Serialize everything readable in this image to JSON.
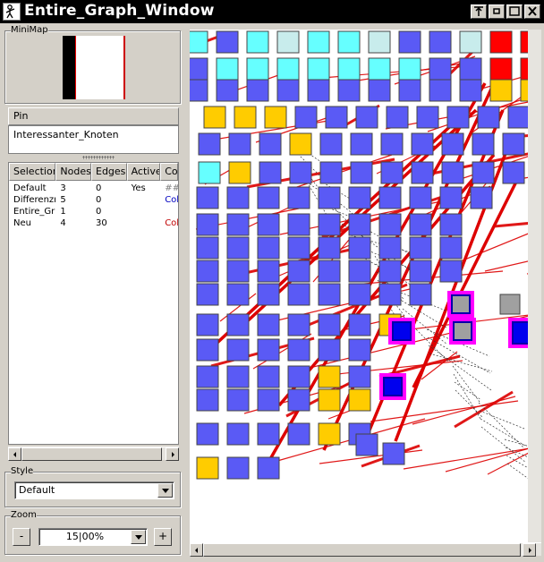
{
  "window": {
    "title": "Entire_Graph_Window"
  },
  "title_buttons": [
    "pin-icon",
    "minimize-icon",
    "maximize-icon",
    "close-icon"
  ],
  "minimap": {
    "label": "MiniMap"
  },
  "pin": {
    "header": "Pin",
    "items": [
      "Interessanter_Knoten"
    ]
  },
  "selection_table": {
    "columns": [
      "Selection",
      "Nodes",
      "Edges",
      "Active",
      "Col"
    ],
    "rows": [
      {
        "selection": "Default",
        "nodes": "3",
        "edges": "0",
        "active": "Yes",
        "col": "###"
      },
      {
        "selection": "Differenzn",
        "nodes": "5",
        "edges": "0",
        "active": "",
        "col": "Col"
      },
      {
        "selection": "Entire_Gr",
        "nodes": "1",
        "edges": "0",
        "active": "",
        "col": ""
      },
      {
        "selection": "Neu",
        "nodes": "4",
        "edges": "30",
        "active": "",
        "col": "Col"
      }
    ],
    "col_colors": [
      "#808080",
      "#0000c0",
      "#000000",
      "#c00000"
    ]
  },
  "style": {
    "label": "Style",
    "value": "Default"
  },
  "zoom": {
    "label": "Zoom",
    "minus": "-",
    "value": "15|00%",
    "plus": "+"
  },
  "colors": {
    "node_blue": "#5a5af5",
    "node_cyan": "#66ffff",
    "node_lightcyan": "#c8ecec",
    "node_yellow": "#ffcc00",
    "node_red": "#ff0000",
    "node_gray": "#a0a0a0",
    "highlight_magenta": "#ff00ff",
    "edge_red": "#dd0000"
  }
}
